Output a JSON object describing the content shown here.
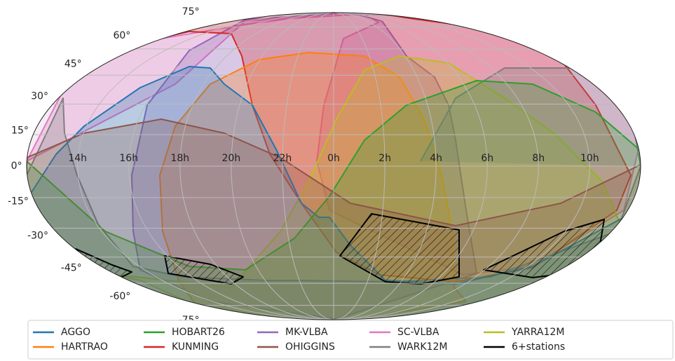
{
  "chart_data": {
    "type": "map",
    "xticks": [
      {
        "value": 14,
        "label": "14h"
      },
      {
        "value": 16,
        "label": "16h"
      },
      {
        "value": 18,
        "label": "18h"
      },
      {
        "value": 20,
        "label": "20h"
      },
      {
        "value": 22,
        "label": "22h"
      },
      {
        "value": 0,
        "label": "0h"
      },
      {
        "value": 2,
        "label": "2h"
      },
      {
        "value": 4,
        "label": "4h"
      },
      {
        "value": 6,
        "label": "6h"
      },
      {
        "value": 8,
        "label": "8h"
      },
      {
        "value": 10,
        "label": "10h"
      }
    ],
    "yticks": [
      {
        "value": -75,
        "label": "-75°"
      },
      {
        "value": -60,
        "label": "-60°"
      },
      {
        "value": -45,
        "label": "-45°"
      },
      {
        "value": -30,
        "label": "-30°"
      },
      {
        "value": -15,
        "label": "-15°"
      },
      {
        "value": 0,
        "label": "0°"
      },
      {
        "value": 15,
        "label": "15°"
      },
      {
        "value": 30,
        "label": "30°"
      },
      {
        "value": 45,
        "label": "45°"
      },
      {
        "value": 60,
        "label": "60°"
      },
      {
        "value": 75,
        "label": "75°"
      }
    ],
    "grid": true,
    "series": [
      {
        "name": "AGGO",
        "color": "#1f77b4"
      },
      {
        "name": "HARTRAO",
        "color": "#ff7f0e"
      },
      {
        "name": "HOBART26",
        "color": "#2ca02c"
      },
      {
        "name": "KUNMING",
        "color": "#d62728"
      },
      {
        "name": "MK-VLBA",
        "color": "#9467bd"
      },
      {
        "name": "OHIGGINS",
        "color": "#8c564b"
      },
      {
        "name": "SC-VLBA",
        "color": "#e377c2"
      },
      {
        "name": "WARK12M",
        "color": "#7f7f7f"
      },
      {
        "name": "YARRA12M",
        "color": "#bcbd22"
      },
      {
        "name": "6+stations",
        "color": "#000000"
      }
    ]
  }
}
